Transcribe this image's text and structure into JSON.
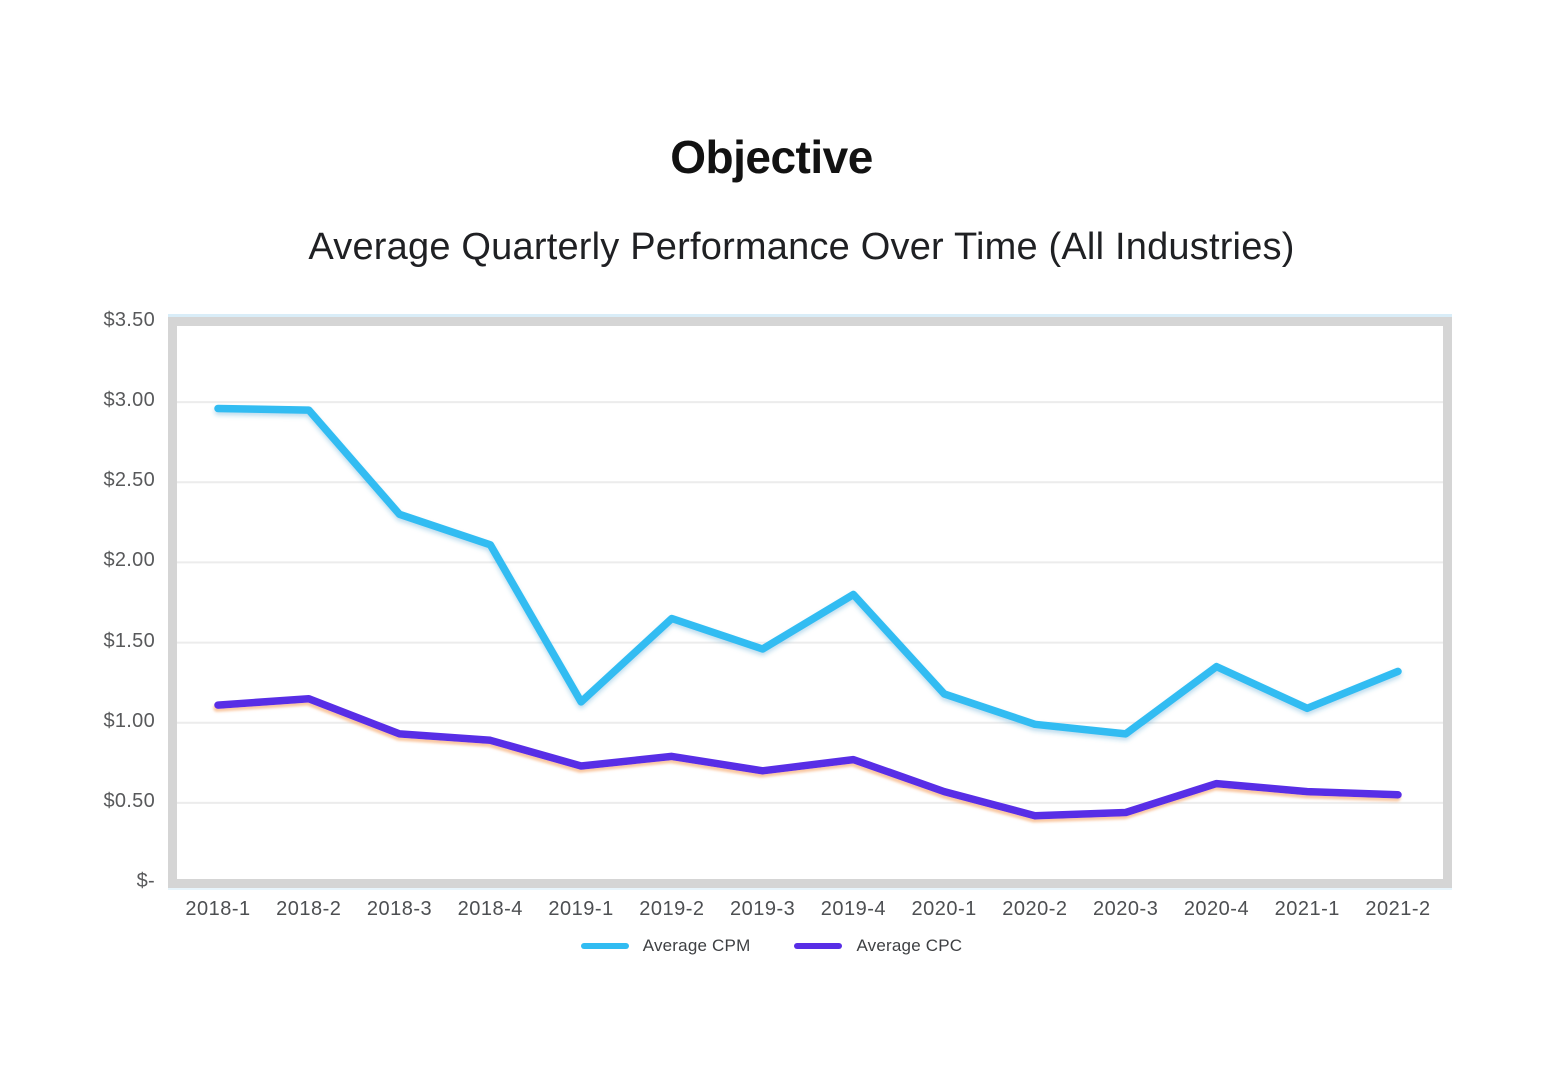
{
  "header": {
    "title": "Objective",
    "subtitle": "Average Quarterly Performance Over Time (All Industries)"
  },
  "chart_data": {
    "type": "line",
    "title": "Average Quarterly Performance Over Time (All Industries)",
    "categories": [
      "2018-1",
      "2018-2",
      "2018-3",
      "2018-4",
      "2019-1",
      "2019-2",
      "2019-3",
      "2019-4",
      "2020-1",
      "2020-2",
      "2020-3",
      "2020-4",
      "2021-1",
      "2021-2"
    ],
    "series": [
      {
        "name": "Average CPM",
        "color": "#31bcf2",
        "shadow_color": "#2c8fc4",
        "values": [
          2.96,
          2.95,
          2.3,
          2.11,
          1.13,
          1.65,
          1.46,
          1.8,
          1.18,
          0.99,
          0.93,
          1.35,
          1.09,
          1.32
        ]
      },
      {
        "name": "Average CPC",
        "color": "#582ee6",
        "shadow_color": "#f59a52",
        "values": [
          1.11,
          1.15,
          0.93,
          0.89,
          0.73,
          0.79,
          0.7,
          0.77,
          0.57,
          0.42,
          0.44,
          0.62,
          0.57,
          0.55
        ]
      }
    ],
    "y_ticks": [
      {
        "label": "$3.50",
        "value": 3.5
      },
      {
        "label": "$3.00",
        "value": 3.0
      },
      {
        "label": "$2.50",
        "value": 2.5
      },
      {
        "label": "$2.00",
        "value": 2.0
      },
      {
        "label": "$1.50",
        "value": 1.5
      },
      {
        "label": "$1.00",
        "value": 1.0
      },
      {
        "label": "$0.50",
        "value": 0.5
      },
      {
        "label": "$-",
        "value": 0
      }
    ],
    "ylim": [
      0,
      3.5
    ],
    "xlabel": "",
    "ylabel": "",
    "grid": true,
    "legend_position": "bottom",
    "gridline_color": "#ececec",
    "frame_color": "#d5d5d5"
  }
}
